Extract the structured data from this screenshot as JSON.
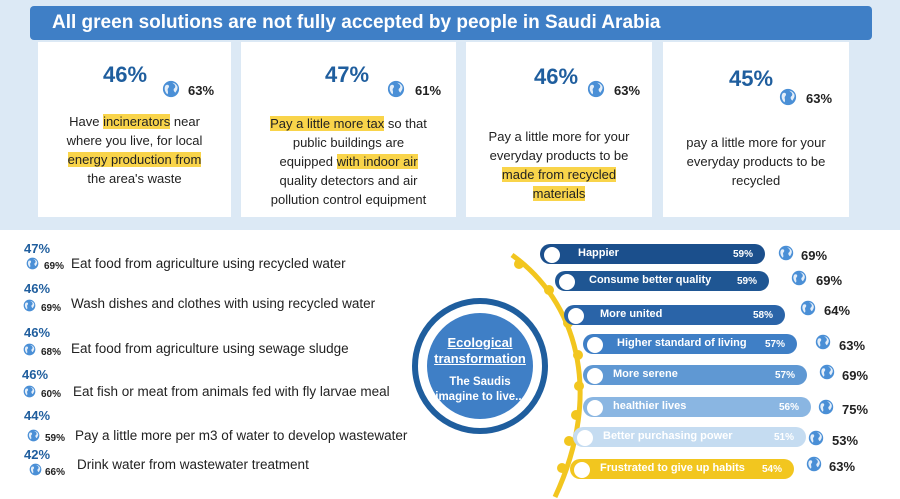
{
  "header": {
    "title": "All green solutions are not fully accepted by people in Saudi Arabia"
  },
  "cards": [
    {
      "pct": "46%",
      "world_pct": "63%",
      "lines": [
        [
          [
            "Have ",
            false
          ],
          [
            "incinerators",
            true
          ],
          [
            " near",
            false
          ]
        ],
        [
          [
            "where you live, for local",
            false
          ]
        ],
        [
          [
            "energy production from",
            true
          ]
        ],
        [
          [
            "the area's waste",
            false
          ]
        ]
      ]
    },
    {
      "pct": "47%",
      "world_pct": "61%",
      "lines": [
        [
          [
            "Pay a little more tax",
            true
          ],
          [
            " so that",
            false
          ]
        ],
        [
          [
            "public buildings are",
            false
          ]
        ],
        [
          [
            "equipped ",
            false
          ],
          [
            "with indoor air",
            true
          ]
        ],
        [
          [
            "quality detectors and air",
            false
          ]
        ],
        [
          [
            "pollution control equipment",
            false
          ]
        ]
      ]
    },
    {
      "pct": "46%",
      "world_pct": "63%",
      "lines": [
        [
          [
            "Pay a little more for your",
            false
          ]
        ],
        [
          [
            "everyday products to be",
            false
          ]
        ],
        [
          [
            "made from recycled",
            true
          ]
        ],
        [
          [
            "materials",
            true
          ]
        ]
      ]
    },
    {
      "pct": "45%",
      "world_pct": "63%",
      "lines": [
        [
          [
            "pay a little more for your",
            false
          ]
        ],
        [
          [
            "everyday products to be",
            false
          ]
        ],
        [
          [
            "recycled",
            false
          ]
        ]
      ]
    }
  ],
  "left_list": [
    {
      "pct": "47%",
      "world_pct": "69%",
      "text": "Eat food from agriculture using recycled water"
    },
    {
      "pct": "46%",
      "world_pct": "69%",
      "text": "Wash dishes and clothes with using recycled water"
    },
    {
      "pct": "46%",
      "world_pct": "68%",
      "text": "Eat food from agriculture using sewage sludge"
    },
    {
      "pct": "46%",
      "world_pct": "60%",
      "text": "Eat fish or meat from animals fed with fly larvae meal"
    },
    {
      "pct": "44%",
      "world_pct": "59%",
      "text": "Pay a little more per m3 of water to develop wastewater"
    },
    {
      "pct": "42%",
      "world_pct": "66%",
      "text": "Drink water from wastewater treatment"
    }
  ],
  "center": {
    "title_line1": "Ecological",
    "title_line2": "transformation",
    "sub_line1": "The Saudis",
    "sub_line2": "imagine to live..."
  },
  "right_list": [
    {
      "label": "Happier",
      "pct": "59%",
      "world_pct": "69%",
      "color": "#1b4f8c",
      "text_color": "#ffffff"
    },
    {
      "label": "Consume better quality",
      "pct": "59%",
      "world_pct": "69%",
      "color": "#1f5693",
      "text_color": "#ffffff"
    },
    {
      "label": "More united",
      "pct": "58%",
      "world_pct": "64%",
      "color": "#2a64a8",
      "text_color": "#ffffff"
    },
    {
      "label": "Higher standard of living",
      "pct": "57%",
      "world_pct": "63%",
      "color": "#3f7fc6",
      "text_color": "#ffffff"
    },
    {
      "label": "More serene",
      "pct": "57%",
      "world_pct": "69%",
      "color": "#5f98d3",
      "text_color": "#ffffff"
    },
    {
      "label": "healthier lives",
      "pct": "56%",
      "world_pct": "75%",
      "color": "#8ab6e2",
      "text_color": "#ffffff"
    },
    {
      "label": "Better purchasing power",
      "pct": "51%",
      "world_pct": "53%",
      "color": "#c5dcf1",
      "text_color": "#ffffff"
    },
    {
      "label": "Frustrated to give up habits",
      "pct": "54%",
      "world_pct": "63%",
      "color": "#f2c61f",
      "text_color": "#ffffff"
    }
  ],
  "colors": {
    "brand_blue": "#3f7fc6",
    "dark_blue": "#1f5e9e",
    "highlight": "#f9d44a",
    "arc": "#f2c61f",
    "top_bg": "#dce9f5"
  }
}
